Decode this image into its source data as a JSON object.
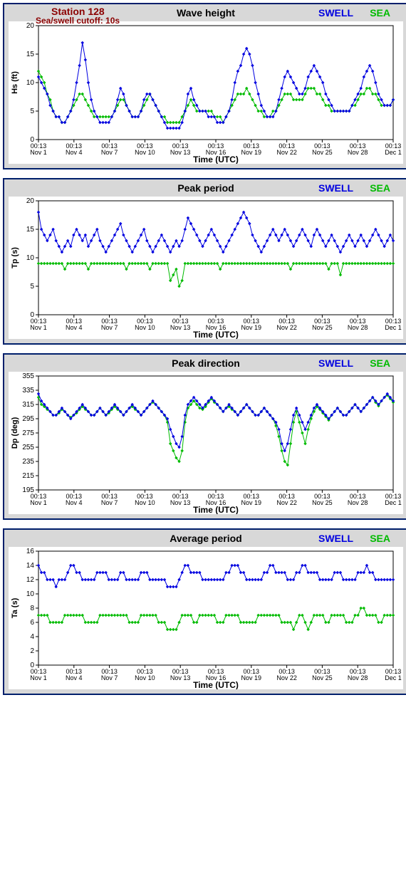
{
  "station_label": "Station 128",
  "cutoff_label": "Sea/swell cutoff: 10s",
  "legend_swell": "SWELL",
  "legend_sea": "SEA",
  "time_label": "Time (UTC)",
  "colors": {
    "swell": "#0000e0",
    "sea": "#00bb00",
    "panel_bg": "#d8d8d8",
    "panel_border": "#001f6b",
    "station_text": "#8b0000"
  },
  "x_ticks": [
    {
      "top": "00:13",
      "bot": "Nov 1"
    },
    {
      "top": "00:13",
      "bot": "Nov 4"
    },
    {
      "top": "00:13",
      "bot": "Nov 7"
    },
    {
      "top": "00:13",
      "bot": "Nov 10"
    },
    {
      "top": "00:13",
      "bot": "Nov 13"
    },
    {
      "top": "00:13",
      "bot": "Nov 16"
    },
    {
      "top": "00:13",
      "bot": "Nov 19"
    },
    {
      "top": "00:13",
      "bot": "Nov 22"
    },
    {
      "top": "00:13",
      "bot": "Nov 25"
    },
    {
      "top": "00:13",
      "bot": "Nov 28"
    },
    {
      "top": "00:13",
      "bot": "Dec 1"
    }
  ],
  "panels": [
    {
      "title": "Wave height",
      "ylabel": "Hs (ft)",
      "ylim": [
        0,
        20
      ],
      "ytick_step": 5,
      "series": {
        "swell": [
          11,
          10,
          9,
          8,
          6,
          5,
          4,
          4,
          3,
          3,
          4,
          5,
          7,
          10,
          13,
          17,
          14,
          10,
          7,
          5,
          4,
          3,
          3,
          3,
          3,
          4,
          5,
          7,
          9,
          8,
          6,
          5,
          4,
          4,
          4,
          5,
          7,
          8,
          8,
          7,
          6,
          5,
          4,
          3,
          2,
          2,
          2,
          2,
          2,
          3,
          5,
          8,
          9,
          7,
          6,
          5,
          5,
          5,
          4,
          4,
          4,
          3,
          3,
          3,
          4,
          5,
          7,
          10,
          12,
          13,
          15,
          16,
          15,
          13,
          10,
          8,
          6,
          5,
          4,
          4,
          4,
          5,
          7,
          9,
          11,
          12,
          11,
          10,
          9,
          8,
          8,
          9,
          11,
          12,
          13,
          12,
          11,
          10,
          8,
          7,
          6,
          5,
          5,
          5,
          5,
          5,
          5,
          6,
          7,
          8,
          9,
          11,
          12,
          13,
          12,
          10,
          8,
          7,
          6,
          6,
          6,
          7
        ],
        "sea": [
          12,
          11,
          10,
          8,
          7,
          5,
          4,
          4,
          3,
          3,
          4,
          5,
          6,
          7,
          8,
          8,
          7,
          6,
          5,
          4,
          4,
          4,
          4,
          4,
          4,
          4,
          5,
          6,
          7,
          7,
          6,
          5,
          4,
          4,
          4,
          5,
          6,
          7,
          8,
          7,
          6,
          5,
          4,
          4,
          3,
          3,
          3,
          3,
          3,
          4,
          5,
          6,
          7,
          6,
          5,
          5,
          5,
          5,
          5,
          5,
          4,
          4,
          4,
          3,
          4,
          5,
          6,
          7,
          8,
          8,
          8,
          9,
          8,
          7,
          6,
          5,
          5,
          4,
          4,
          4,
          5,
          5,
          6,
          7,
          8,
          8,
          8,
          7,
          7,
          7,
          7,
          8,
          9,
          9,
          9,
          8,
          8,
          7,
          6,
          6,
          5,
          5,
          5,
          5,
          5,
          5,
          5,
          6,
          6,
          7,
          8,
          8,
          9,
          9,
          8,
          8,
          7,
          6,
          6,
          6,
          6,
          7
        ]
      }
    },
    {
      "title": "Peak period",
      "ylabel": "Tp (s)",
      "ylim": [
        0,
        20
      ],
      "ytick_step": 5,
      "series": {
        "swell": [
          18,
          15,
          14,
          13,
          14,
          15,
          13,
          12,
          11,
          12,
          13,
          12,
          14,
          15,
          14,
          13,
          14,
          12,
          13,
          14,
          15,
          13,
          12,
          11,
          12,
          13,
          14,
          15,
          16,
          14,
          13,
          12,
          11,
          12,
          13,
          14,
          15,
          13,
          12,
          11,
          12,
          13,
          14,
          13,
          12,
          11,
          12,
          13,
          12,
          13,
          15,
          17,
          16,
          15,
          14,
          13,
          12,
          13,
          14,
          15,
          14,
          13,
          12,
          11,
          12,
          13,
          14,
          15,
          16,
          17,
          18,
          17,
          16,
          14,
          13,
          12,
          11,
          12,
          13,
          14,
          15,
          14,
          13,
          14,
          15,
          14,
          13,
          12,
          13,
          14,
          15,
          14,
          13,
          12,
          14,
          15,
          14,
          13,
          12,
          13,
          14,
          13,
          12,
          11,
          12,
          13,
          14,
          13,
          12,
          13,
          14,
          13,
          12,
          13,
          14,
          15,
          14,
          13,
          12,
          13,
          14,
          13
        ],
        "sea": [
          9,
          9,
          9,
          9,
          9,
          9,
          9,
          9,
          9,
          8,
          9,
          9,
          9,
          9,
          9,
          9,
          9,
          8,
          9,
          9,
          9,
          9,
          9,
          9,
          9,
          9,
          9,
          9,
          9,
          9,
          8,
          9,
          9,
          9,
          9,
          9,
          9,
          9,
          8,
          9,
          9,
          9,
          9,
          9,
          9,
          6,
          7,
          8,
          5,
          6,
          9,
          9,
          9,
          9,
          9,
          9,
          9,
          9,
          9,
          9,
          9,
          9,
          8,
          9,
          9,
          9,
          9,
          9,
          9,
          9,
          9,
          9,
          9,
          9,
          9,
          9,
          9,
          9,
          9,
          9,
          9,
          9,
          9,
          9,
          9,
          9,
          8,
          9,
          9,
          9,
          9,
          9,
          9,
          9,
          9,
          9,
          9,
          9,
          9,
          8,
          9,
          9,
          9,
          7,
          9,
          9,
          9,
          9,
          9,
          9,
          9,
          9,
          9,
          9,
          9,
          9,
          9,
          9,
          9,
          9,
          9,
          9
        ]
      }
    },
    {
      "title": "Peak direction",
      "ylabel": "Dp (deg)",
      "ylim": [
        195,
        355
      ],
      "ytick_step": 20,
      "series": {
        "swell": [
          330,
          320,
          315,
          310,
          305,
          300,
          300,
          305,
          310,
          305,
          300,
          295,
          300,
          305,
          310,
          315,
          310,
          305,
          300,
          300,
          305,
          310,
          305,
          300,
          305,
          310,
          315,
          310,
          305,
          300,
          305,
          310,
          315,
          310,
          305,
          300,
          305,
          310,
          315,
          320,
          315,
          310,
          305,
          300,
          295,
          280,
          270,
          260,
          255,
          270,
          300,
          315,
          320,
          325,
          320,
          315,
          310,
          315,
          320,
          325,
          320,
          315,
          310,
          305,
          310,
          315,
          310,
          305,
          300,
          305,
          310,
          315,
          310,
          305,
          300,
          300,
          305,
          310,
          305,
          300,
          295,
          290,
          280,
          260,
          250,
          260,
          280,
          300,
          310,
          300,
          290,
          280,
          290,
          300,
          310,
          315,
          310,
          305,
          300,
          295,
          300,
          305,
          310,
          305,
          300,
          300,
          305,
          310,
          315,
          310,
          305,
          310,
          315,
          320,
          325,
          320,
          315,
          320,
          325,
          330,
          325,
          320
        ],
        "sea": [
          325,
          315,
          312,
          308,
          305,
          300,
          300,
          303,
          308,
          305,
          300,
          297,
          300,
          303,
          308,
          312,
          308,
          305,
          300,
          300,
          305,
          310,
          305,
          300,
          303,
          308,
          312,
          308,
          305,
          300,
          305,
          310,
          312,
          308,
          305,
          300,
          305,
          310,
          315,
          318,
          315,
          310,
          305,
          300,
          290,
          260,
          250,
          240,
          235,
          250,
          290,
          310,
          315,
          320,
          315,
          310,
          308,
          312,
          318,
          323,
          318,
          315,
          310,
          305,
          310,
          312,
          308,
          305,
          300,
          305,
          310,
          315,
          310,
          305,
          300,
          300,
          305,
          310,
          305,
          300,
          295,
          285,
          270,
          250,
          235,
          230,
          260,
          290,
          305,
          290,
          275,
          260,
          280,
          295,
          305,
          312,
          308,
          303,
          298,
          293,
          300,
          305,
          310,
          305,
          300,
          300,
          305,
          310,
          315,
          310,
          305,
          310,
          315,
          320,
          325,
          318,
          313,
          320,
          325,
          328,
          323,
          318
        ]
      }
    },
    {
      "title": "Average period",
      "ylabel": "Ta (s)",
      "ylim": [
        0,
        16
      ],
      "ytick_step": 2,
      "series": {
        "swell": [
          14,
          13,
          13,
          12,
          12,
          12,
          11,
          12,
          12,
          12,
          13,
          14,
          14,
          13,
          13,
          12,
          12,
          12,
          12,
          12,
          13,
          13,
          13,
          13,
          12,
          12,
          12,
          12,
          13,
          13,
          12,
          12,
          12,
          12,
          12,
          13,
          13,
          13,
          12,
          12,
          12,
          12,
          12,
          12,
          11,
          11,
          11,
          11,
          12,
          13,
          14,
          14,
          13,
          13,
          13,
          13,
          12,
          12,
          12,
          12,
          12,
          12,
          12,
          12,
          13,
          13,
          14,
          14,
          14,
          13,
          13,
          12,
          12,
          12,
          12,
          12,
          12,
          13,
          13,
          14,
          14,
          13,
          13,
          13,
          13,
          12,
          12,
          12,
          13,
          13,
          14,
          14,
          13,
          13,
          13,
          13,
          12,
          12,
          12,
          12,
          12,
          13,
          13,
          13,
          12,
          12,
          12,
          12,
          12,
          13,
          13,
          13,
          14,
          13,
          13,
          12,
          12,
          12,
          12,
          12,
          12,
          12
        ],
        "sea": [
          7,
          7,
          7,
          7,
          6,
          6,
          6,
          6,
          6,
          7,
          7,
          7,
          7,
          7,
          7,
          7,
          6,
          6,
          6,
          6,
          6,
          7,
          7,
          7,
          7,
          7,
          7,
          7,
          7,
          7,
          7,
          6,
          6,
          6,
          6,
          7,
          7,
          7,
          7,
          7,
          7,
          6,
          6,
          6,
          5,
          5,
          5,
          5,
          6,
          7,
          7,
          7,
          7,
          6,
          6,
          7,
          7,
          7,
          7,
          7,
          7,
          6,
          6,
          6,
          7,
          7,
          7,
          7,
          7,
          6,
          6,
          6,
          6,
          6,
          6,
          7,
          7,
          7,
          7,
          7,
          7,
          7,
          7,
          6,
          6,
          6,
          6,
          5,
          6,
          7,
          7,
          6,
          5,
          6,
          7,
          7,
          7,
          7,
          6,
          6,
          7,
          7,
          7,
          7,
          7,
          6,
          6,
          6,
          7,
          7,
          8,
          8,
          7,
          7,
          7,
          7,
          6,
          6,
          7,
          7,
          7,
          7
        ]
      }
    }
  ]
}
